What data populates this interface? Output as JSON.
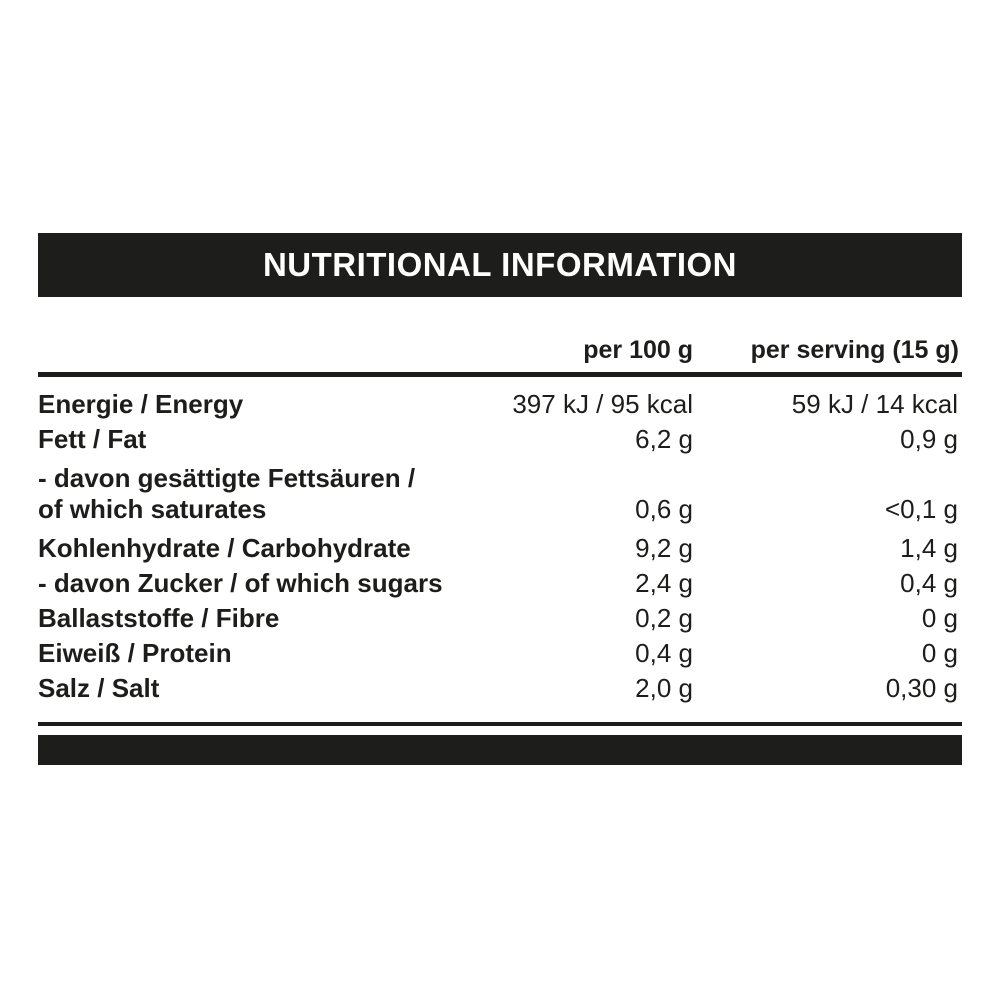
{
  "colors": {
    "ink": "#1d1d1b",
    "title_text": "#ffffff"
  },
  "label": {
    "title": "NUTRITIONAL INFORMATION",
    "columns": {
      "per100": "per 100 g",
      "serving": "per serving (15 g)"
    },
    "rows": [
      {
        "name": "Energie / Energy",
        "per100": "397 kJ / 95 kcal",
        "serving": "59 kJ / 14 kcal"
      },
      {
        "name": "Fett / Fat",
        "per100": "6,2 g",
        "serving": "0,9 g"
      },
      {
        "name_line1": "- davon gesättigte Fettsäuren /",
        "name_line2": "of which saturates",
        "per100": "0,6 g",
        "serving": "<0,1 g"
      },
      {
        "name": "Kohlenhydrate / Carbohydrate",
        "per100": "9,2 g",
        "serving": "1,4 g"
      },
      {
        "name": "- davon Zucker / of which sugars",
        "per100": "2,4 g",
        "serving": "0,4 g"
      },
      {
        "name": "Ballaststoffe / Fibre",
        "per100": "0,2 g",
        "serving": "0 g"
      },
      {
        "name": "Eiweiß / Protein",
        "per100": "0,4 g",
        "serving": "0 g"
      },
      {
        "name": "Salz / Salt",
        "per100": "2,0 g",
        "serving": "0,30 g"
      }
    ]
  }
}
